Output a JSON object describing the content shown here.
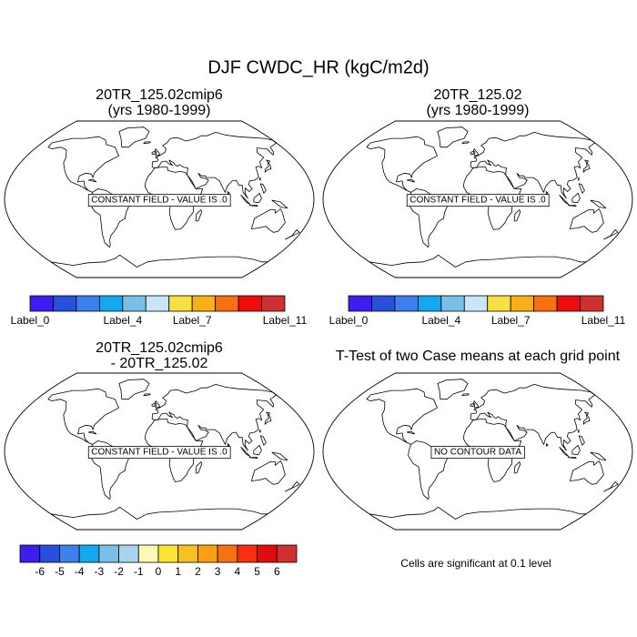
{
  "figure": {
    "title": "DJF CWDC_HR (kgC/m2d)",
    "panels": [
      {
        "title": [
          "20TR_125.02cmip6",
          "(yrs 1980-1999)"
        ],
        "message": "CONSTANT FIELD - VALUE IS .0"
      },
      {
        "title": [
          "20TR_125.02",
          "(yrs 1980-1999)"
        ],
        "message": "CONSTANT FIELD - VALUE IS .0"
      },
      {
        "title": [
          "20TR_125.02cmip6",
          "- 20TR_125.02"
        ],
        "message": "CONSTANT FIELD - VALUE IS .0"
      },
      {
        "title": [
          "T-Test of two Case means at each grid point"
        ],
        "message": "NO CONTOUR DATA"
      }
    ],
    "colorbars": [
      {
        "colors": [
          "#3c1ef0",
          "#2850dc",
          "#3c80f0",
          "#14a8f0",
          "#78c0e8",
          "#c8e6f8",
          "#f8e040",
          "#f8b018",
          "#f87010",
          "#f00c0c",
          "#d03030"
        ],
        "labels": [
          "Label_0",
          null,
          null,
          null,
          "Label_4",
          null,
          null,
          "Label_7",
          null,
          null,
          null,
          "Label_11"
        ]
      },
      {
        "colors": [
          "#3c1ef0",
          "#2850dc",
          "#3c80f0",
          "#14a8f0",
          "#78c0e8",
          "#c8e6f8",
          "#f8e040",
          "#f8b018",
          "#f87010",
          "#f00c0c",
          "#d03030"
        ],
        "labels": [
          "Label_0",
          null,
          null,
          null,
          "Label_4",
          null,
          null,
          "Label_7",
          null,
          null,
          null,
          "Label_11"
        ]
      },
      {
        "colors": [
          "#3c1ef0",
          "#2850dc",
          "#3c80f0",
          "#14a8f0",
          "#78c0e8",
          "#a8d4f0",
          "#fafab4",
          "#fae632",
          "#f8c020",
          "#f8a010",
          "#f87010",
          "#f83010",
          "#e00c0c",
          "#d03030"
        ],
        "labels": [
          -6,
          -5,
          -4,
          -3,
          -2,
          -1,
          0,
          1,
          2,
          3,
          4,
          5,
          6
        ]
      }
    ],
    "footnote": "Cells are significant at 0.1 level"
  }
}
